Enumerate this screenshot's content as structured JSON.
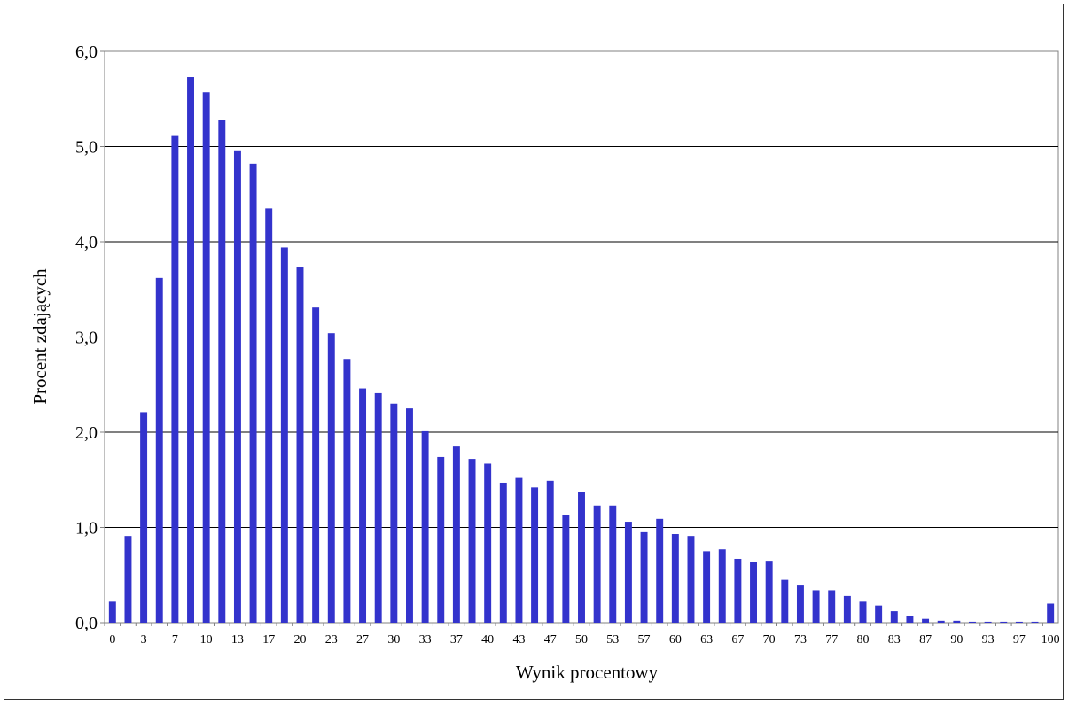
{
  "chart_data": {
    "type": "bar",
    "title": "",
    "xlabel": "Wynik procentowy",
    "ylabel": "Procent zdających",
    "ylim": [
      0,
      6
    ],
    "yticks": [
      "0,0",
      "1,0",
      "2,0",
      "3,0",
      "4,0",
      "5,0",
      "6,0"
    ],
    "grid": true,
    "legend": "none",
    "bar_color": "#3333cc",
    "categories": [
      "0",
      "",
      "3",
      "",
      "7",
      "",
      "10",
      "",
      "13",
      "",
      "17",
      "",
      "20",
      "",
      "23",
      "",
      "27",
      "",
      "30",
      "",
      "33",
      "",
      "37",
      "",
      "40",
      "",
      "43",
      "",
      "47",
      "",
      "50",
      "",
      "53",
      "",
      "57",
      "",
      "60",
      "",
      "63",
      "",
      "67",
      "",
      "70",
      "",
      "73",
      "",
      "77",
      "",
      "80",
      "",
      "83",
      "",
      "87",
      "",
      "90",
      "",
      "93",
      "",
      "97",
      "",
      "100"
    ],
    "values": [
      0.22,
      0.91,
      2.21,
      3.62,
      5.12,
      5.73,
      5.57,
      5.28,
      4.96,
      4.82,
      4.35,
      3.94,
      3.73,
      3.31,
      3.04,
      2.77,
      2.46,
      2.41,
      2.3,
      2.25,
      2.01,
      1.74,
      1.85,
      1.72,
      1.67,
      1.47,
      1.52,
      1.42,
      1.49,
      1.13,
      1.37,
      1.23,
      1.23,
      1.06,
      0.95,
      1.09,
      0.93,
      0.91,
      0.75,
      0.77,
      0.67,
      0.64,
      0.65,
      0.45,
      0.39,
      0.34,
      0.34,
      0.28,
      0.22,
      0.18,
      0.12,
      0.07,
      0.04,
      0.02,
      0.02,
      0.01,
      0.01,
      0.01,
      0.01,
      0.01,
      0.2
    ]
  }
}
